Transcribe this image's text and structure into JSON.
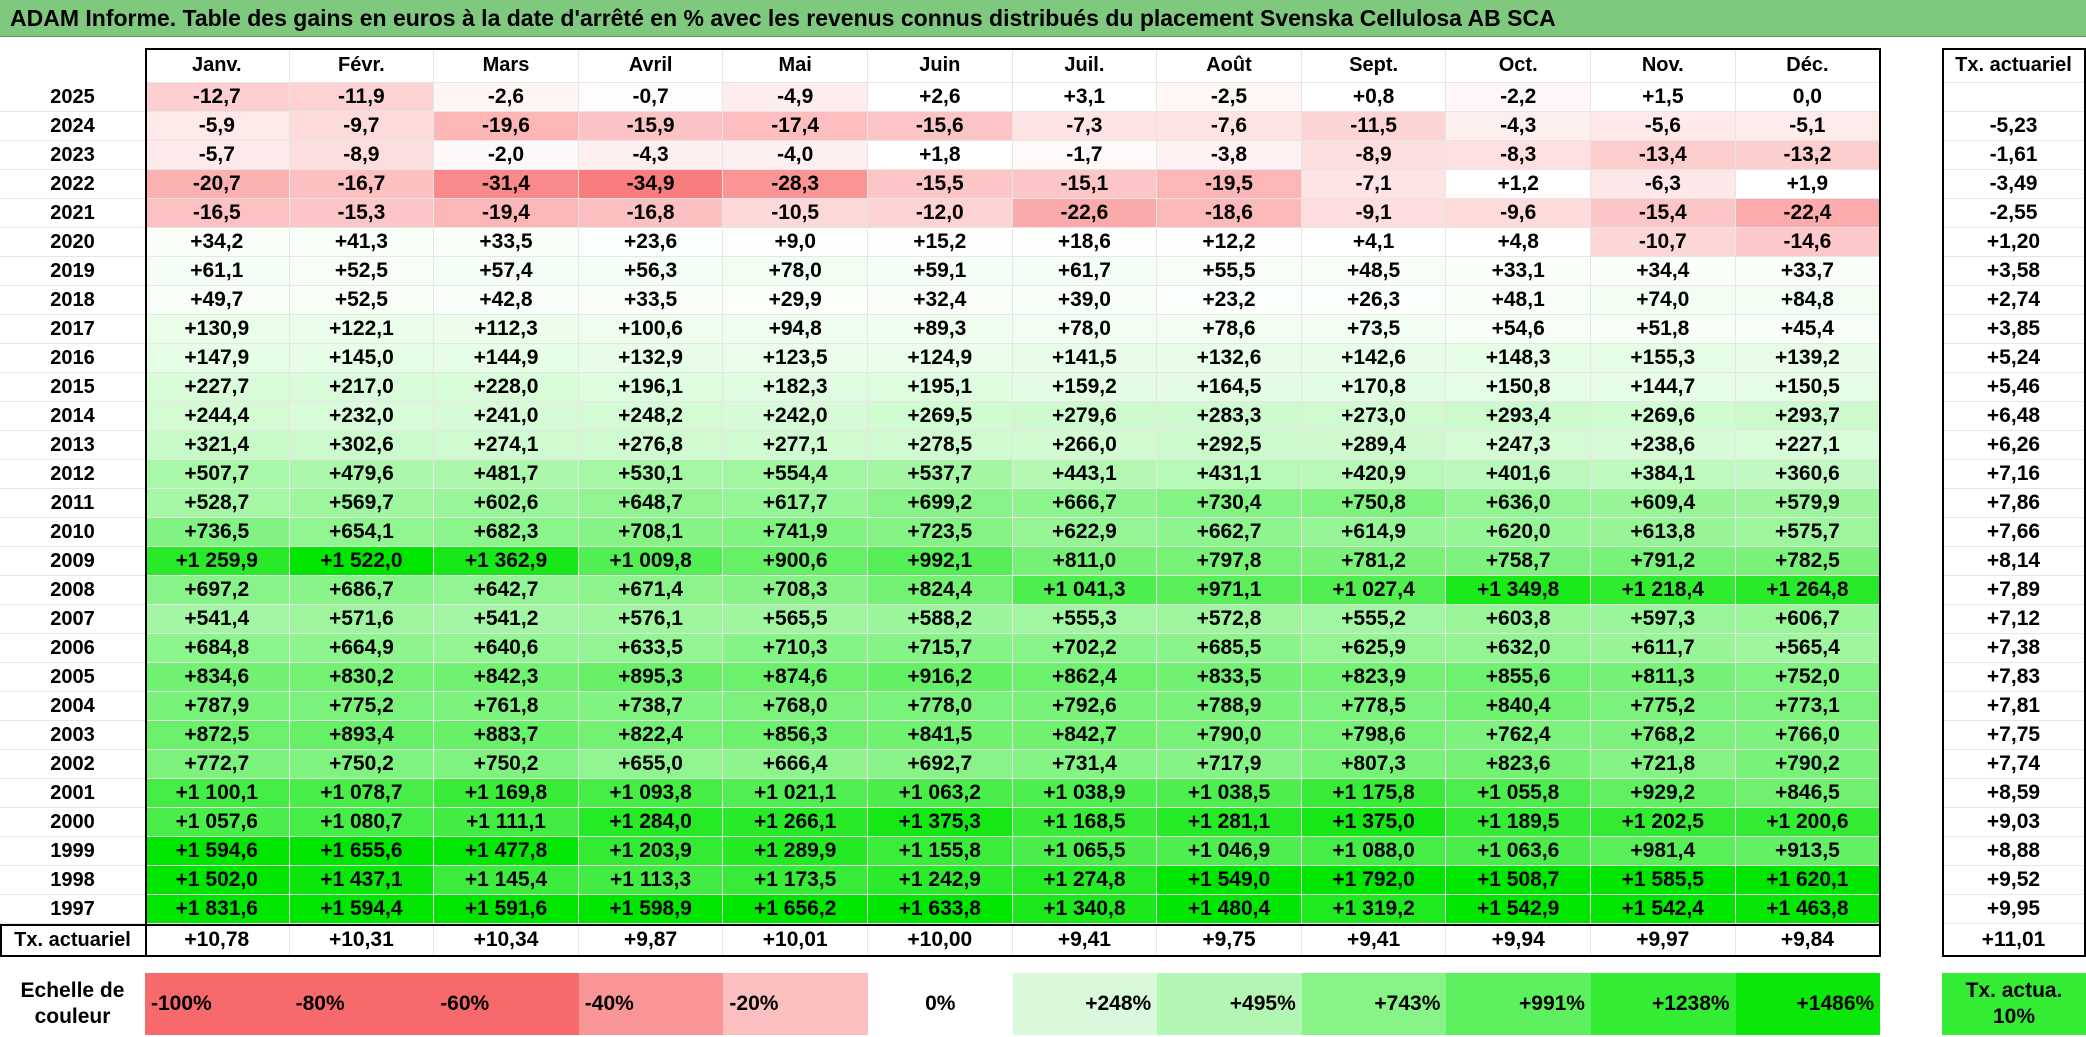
{
  "title": "ADAM Informe. Table des gains en euros à la date d'arrêté en % avec les revenus connus distribués du placement Svenska Cellulosa AB SCA",
  "months": [
    "Janv.",
    "Févr.",
    "Mars",
    "Avril",
    "Mai",
    "Juin",
    "Juil.",
    "Août",
    "Sept.",
    "Oct.",
    "Nov.",
    "Déc."
  ],
  "rate_header": "Tx. actuariel",
  "rows": [
    {
      "year": "2025",
      "cells": [
        "-12,7",
        "-11,9",
        "-2,6",
        "-0,7",
        "-4,9",
        "+2,6",
        "+3,1",
        "-2,5",
        "+0,8",
        "-2,2",
        "+1,5",
        "0,0"
      ],
      "vals": [
        -12.7,
        -11.9,
        -2.6,
        -0.7,
        -4.9,
        2.6,
        3.1,
        -2.5,
        0.8,
        -2.2,
        1.5,
        0.0
      ],
      "rate": ""
    },
    {
      "year": "2024",
      "cells": [
        "-5,9",
        "-9,7",
        "-19,6",
        "-15,9",
        "-17,4",
        "-15,6",
        "-7,3",
        "-7,6",
        "-11,5",
        "-4,3",
        "-5,6",
        "-5,1"
      ],
      "vals": [
        -5.9,
        -9.7,
        -19.6,
        -15.9,
        -17.4,
        -15.6,
        -7.3,
        -7.6,
        -11.5,
        -4.3,
        -5.6,
        -5.1
      ],
      "rate": "-5,23"
    },
    {
      "year": "2023",
      "cells": [
        "-5,7",
        "-8,9",
        "-2,0",
        "-4,3",
        "-4,0",
        "+1,8",
        "-1,7",
        "-3,8",
        "-8,9",
        "-8,3",
        "-13,4",
        "-13,2"
      ],
      "vals": [
        -5.7,
        -8.9,
        -2.0,
        -4.3,
        -4.0,
        1.8,
        -1.7,
        -3.8,
        -8.9,
        -8.3,
        -13.4,
        -13.2
      ],
      "rate": "-1,61"
    },
    {
      "year": "2022",
      "cells": [
        "-20,7",
        "-16,7",
        "-31,4",
        "-34,9",
        "-28,3",
        "-15,5",
        "-15,1",
        "-19,5",
        "-7,1",
        "+1,2",
        "-6,3",
        "+1,9"
      ],
      "vals": [
        -20.7,
        -16.7,
        -31.4,
        -34.9,
        -28.3,
        -15.5,
        -15.1,
        -19.5,
        -7.1,
        1.2,
        -6.3,
        1.9
      ],
      "rate": "-3,49"
    },
    {
      "year": "2021",
      "cells": [
        "-16,5",
        "-15,3",
        "-19,4",
        "-16,8",
        "-10,5",
        "-12,0",
        "-22,6",
        "-18,6",
        "-9,1",
        "-9,6",
        "-15,4",
        "-22,4"
      ],
      "vals": [
        -16.5,
        -15.3,
        -19.4,
        -16.8,
        -10.5,
        -12.0,
        -22.6,
        -18.6,
        -9.1,
        -9.6,
        -15.4,
        -22.4
      ],
      "rate": "-2,55"
    },
    {
      "year": "2020",
      "cells": [
        "+34,2",
        "+41,3",
        "+33,5",
        "+23,6",
        "+9,0",
        "+15,2",
        "+18,6",
        "+12,2",
        "+4,1",
        "+4,8",
        "-10,7",
        "-14,6"
      ],
      "vals": [
        34.2,
        41.3,
        33.5,
        23.6,
        9.0,
        15.2,
        18.6,
        12.2,
        4.1,
        4.8,
        -10.7,
        -14.6
      ],
      "rate": "+1,20"
    },
    {
      "year": "2019",
      "cells": [
        "+61,1",
        "+52,5",
        "+57,4",
        "+56,3",
        "+78,0",
        "+59,1",
        "+61,7",
        "+55,5",
        "+48,5",
        "+33,1",
        "+34,4",
        "+33,7"
      ],
      "vals": [
        61.1,
        52.5,
        57.4,
        56.3,
        78.0,
        59.1,
        61.7,
        55.5,
        48.5,
        33.1,
        34.4,
        33.7
      ],
      "rate": "+3,58"
    },
    {
      "year": "2018",
      "cells": [
        "+49,7",
        "+52,5",
        "+42,8",
        "+33,5",
        "+29,9",
        "+32,4",
        "+39,0",
        "+23,2",
        "+26,3",
        "+48,1",
        "+74,0",
        "+84,8"
      ],
      "vals": [
        49.7,
        52.5,
        42.8,
        33.5,
        29.9,
        32.4,
        39.0,
        23.2,
        26.3,
        48.1,
        74.0,
        84.8
      ],
      "rate": "+2,74"
    },
    {
      "year": "2017",
      "cells": [
        "+130,9",
        "+122,1",
        "+112,3",
        "+100,6",
        "+94,8",
        "+89,3",
        "+78,0",
        "+78,6",
        "+73,5",
        "+54,6",
        "+51,8",
        "+45,4"
      ],
      "vals": [
        130.9,
        122.1,
        112.3,
        100.6,
        94.8,
        89.3,
        78.0,
        78.6,
        73.5,
        54.6,
        51.8,
        45.4
      ],
      "rate": "+3,85"
    },
    {
      "year": "2016",
      "cells": [
        "+147,9",
        "+145,0",
        "+144,9",
        "+132,9",
        "+123,5",
        "+124,9",
        "+141,5",
        "+132,6",
        "+142,6",
        "+148,3",
        "+155,3",
        "+139,2"
      ],
      "vals": [
        147.9,
        145.0,
        144.9,
        132.9,
        123.5,
        124.9,
        141.5,
        132.6,
        142.6,
        148.3,
        155.3,
        139.2
      ],
      "rate": "+5,24"
    },
    {
      "year": "2015",
      "cells": [
        "+227,7",
        "+217,0",
        "+228,0",
        "+196,1",
        "+182,3",
        "+195,1",
        "+159,2",
        "+164,5",
        "+170,8",
        "+150,8",
        "+144,7",
        "+150,5"
      ],
      "vals": [
        227.7,
        217.0,
        228.0,
        196.1,
        182.3,
        195.1,
        159.2,
        164.5,
        170.8,
        150.8,
        144.7,
        150.5
      ],
      "rate": "+5,46"
    },
    {
      "year": "2014",
      "cells": [
        "+244,4",
        "+232,0",
        "+241,0",
        "+248,2",
        "+242,0",
        "+269,5",
        "+279,6",
        "+283,3",
        "+273,0",
        "+293,4",
        "+269,6",
        "+293,7"
      ],
      "vals": [
        244.4,
        232.0,
        241.0,
        248.2,
        242.0,
        269.5,
        279.6,
        283.3,
        273.0,
        293.4,
        269.6,
        293.7
      ],
      "rate": "+6,48"
    },
    {
      "year": "2013",
      "cells": [
        "+321,4",
        "+302,6",
        "+274,1",
        "+276,8",
        "+277,1",
        "+278,5",
        "+266,0",
        "+292,5",
        "+289,4",
        "+247,3",
        "+238,6",
        "+227,1"
      ],
      "vals": [
        321.4,
        302.6,
        274.1,
        276.8,
        277.1,
        278.5,
        266.0,
        292.5,
        289.4,
        247.3,
        238.6,
        227.1
      ],
      "rate": "+6,26"
    },
    {
      "year": "2012",
      "cells": [
        "+507,7",
        "+479,6",
        "+481,7",
        "+530,1",
        "+554,4",
        "+537,7",
        "+443,1",
        "+431,1",
        "+420,9",
        "+401,6",
        "+384,1",
        "+360,6"
      ],
      "vals": [
        507.7,
        479.6,
        481.7,
        530.1,
        554.4,
        537.7,
        443.1,
        431.1,
        420.9,
        401.6,
        384.1,
        360.6
      ],
      "rate": "+7,16"
    },
    {
      "year": "2011",
      "cells": [
        "+528,7",
        "+569,7",
        "+602,6",
        "+648,7",
        "+617,7",
        "+699,2",
        "+666,7",
        "+730,4",
        "+750,8",
        "+636,0",
        "+609,4",
        "+579,9"
      ],
      "vals": [
        528.7,
        569.7,
        602.6,
        648.7,
        617.7,
        699.2,
        666.7,
        730.4,
        750.8,
        636.0,
        609.4,
        579.9
      ],
      "rate": "+7,86"
    },
    {
      "year": "2010",
      "cells": [
        "+736,5",
        "+654,1",
        "+682,3",
        "+708,1",
        "+741,9",
        "+723,5",
        "+622,9",
        "+662,7",
        "+614,9",
        "+620,0",
        "+613,8",
        "+575,7"
      ],
      "vals": [
        736.5,
        654.1,
        682.3,
        708.1,
        741.9,
        723.5,
        622.9,
        662.7,
        614.9,
        620.0,
        613.8,
        575.7
      ],
      "rate": "+7,66"
    },
    {
      "year": "2009",
      "cells": [
        "+1 259,9",
        "+1 522,0",
        "+1 362,9",
        "+1 009,8",
        "+900,6",
        "+992,1",
        "+811,0",
        "+797,8",
        "+781,2",
        "+758,7",
        "+791,2",
        "+782,5"
      ],
      "vals": [
        1259.9,
        1522.0,
        1362.9,
        1009.8,
        900.6,
        992.1,
        811.0,
        797.8,
        781.2,
        758.7,
        791.2,
        782.5
      ],
      "rate": "+8,14"
    },
    {
      "year": "2008",
      "cells": [
        "+697,2",
        "+686,7",
        "+642,7",
        "+671,4",
        "+708,3",
        "+824,4",
        "+1 041,3",
        "+971,1",
        "+1 027,4",
        "+1 349,8",
        "+1 218,4",
        "+1 264,8"
      ],
      "vals": [
        697.2,
        686.7,
        642.7,
        671.4,
        708.3,
        824.4,
        1041.3,
        971.1,
        1027.4,
        1349.8,
        1218.4,
        1264.8
      ],
      "rate": "+7,89"
    },
    {
      "year": "2007",
      "cells": [
        "+541,4",
        "+571,6",
        "+541,2",
        "+576,1",
        "+565,5",
        "+588,2",
        "+555,3",
        "+572,8",
        "+555,2",
        "+603,8",
        "+597,3",
        "+606,7"
      ],
      "vals": [
        541.4,
        571.6,
        541.2,
        576.1,
        565.5,
        588.2,
        555.3,
        572.8,
        555.2,
        603.8,
        597.3,
        606.7
      ],
      "rate": "+7,12"
    },
    {
      "year": "2006",
      "cells": [
        "+684,8",
        "+664,9",
        "+640,6",
        "+633,5",
        "+710,3",
        "+715,7",
        "+702,2",
        "+685,5",
        "+625,9",
        "+632,0",
        "+611,7",
        "+565,4"
      ],
      "vals": [
        684.8,
        664.9,
        640.6,
        633.5,
        710.3,
        715.7,
        702.2,
        685.5,
        625.9,
        632.0,
        611.7,
        565.4
      ],
      "rate": "+7,38"
    },
    {
      "year": "2005",
      "cells": [
        "+834,6",
        "+830,2",
        "+842,3",
        "+895,3",
        "+874,6",
        "+916,2",
        "+862,4",
        "+833,5",
        "+823,9",
        "+855,6",
        "+811,3",
        "+752,0"
      ],
      "vals": [
        834.6,
        830.2,
        842.3,
        895.3,
        874.6,
        916.2,
        862.4,
        833.5,
        823.9,
        855.6,
        811.3,
        752.0
      ],
      "rate": "+7,83"
    },
    {
      "year": "2004",
      "cells": [
        "+787,9",
        "+775,2",
        "+761,8",
        "+738,7",
        "+768,0",
        "+778,0",
        "+792,6",
        "+788,9",
        "+778,5",
        "+840,4",
        "+775,2",
        "+773,1"
      ],
      "vals": [
        787.9,
        775.2,
        761.8,
        738.7,
        768.0,
        778.0,
        792.6,
        788.9,
        778.5,
        840.4,
        775.2,
        773.1
      ],
      "rate": "+7,81"
    },
    {
      "year": "2003",
      "cells": [
        "+872,5",
        "+893,4",
        "+883,7",
        "+822,4",
        "+856,3",
        "+841,5",
        "+842,7",
        "+790,0",
        "+798,6",
        "+762,4",
        "+768,2",
        "+766,0"
      ],
      "vals": [
        872.5,
        893.4,
        883.7,
        822.4,
        856.3,
        841.5,
        842.7,
        790.0,
        798.6,
        762.4,
        768.2,
        766.0
      ],
      "rate": "+7,75"
    },
    {
      "year": "2002",
      "cells": [
        "+772,7",
        "+750,2",
        "+750,2",
        "+655,0",
        "+666,4",
        "+692,7",
        "+731,4",
        "+717,9",
        "+807,3",
        "+823,6",
        "+721,8",
        "+790,2"
      ],
      "vals": [
        772.7,
        750.2,
        750.2,
        655.0,
        666.4,
        692.7,
        731.4,
        717.9,
        807.3,
        823.6,
        721.8,
        790.2
      ],
      "rate": "+7,74"
    },
    {
      "year": "2001",
      "cells": [
        "+1 100,1",
        "+1 078,7",
        "+1 169,8",
        "+1 093,8",
        "+1 021,1",
        "+1 063,2",
        "+1 038,9",
        "+1 038,5",
        "+1 175,8",
        "+1 055,8",
        "+929,2",
        "+846,5"
      ],
      "vals": [
        1100.1,
        1078.7,
        1169.8,
        1093.8,
        1021.1,
        1063.2,
        1038.9,
        1038.5,
        1175.8,
        1055.8,
        929.2,
        846.5
      ],
      "rate": "+8,59"
    },
    {
      "year": "2000",
      "cells": [
        "+1 057,6",
        "+1 080,7",
        "+1 111,1",
        "+1 284,0",
        "+1 266,1",
        "+1 375,3",
        "+1 168,5",
        "+1 281,1",
        "+1 375,0",
        "+1 189,5",
        "+1 202,5",
        "+1 200,6"
      ],
      "vals": [
        1057.6,
        1080.7,
        1111.1,
        1284.0,
        1266.1,
        1375.3,
        1168.5,
        1281.1,
        1375.0,
        1189.5,
        1202.5,
        1200.6
      ],
      "rate": "+9,03"
    },
    {
      "year": "1999",
      "cells": [
        "+1 594,6",
        "+1 655,6",
        "+1 477,8",
        "+1 203,9",
        "+1 289,9",
        "+1 155,8",
        "+1 065,5",
        "+1 046,9",
        "+1 088,0",
        "+1 063,6",
        "+981,4",
        "+913,5"
      ],
      "vals": [
        1594.6,
        1655.6,
        1477.8,
        1203.9,
        1289.9,
        1155.8,
        1065.5,
        1046.9,
        1088.0,
        1063.6,
        981.4,
        913.5
      ],
      "rate": "+8,88"
    },
    {
      "year": "1998",
      "cells": [
        "+1 502,0",
        "+1 437,1",
        "+1 145,4",
        "+1 113,3",
        "+1 173,5",
        "+1 242,9",
        "+1 274,8",
        "+1 549,0",
        "+1 792,0",
        "+1 508,7",
        "+1 585,5",
        "+1 620,1"
      ],
      "vals": [
        1502.0,
        1437.1,
        1145.4,
        1113.3,
        1173.5,
        1242.9,
        1274.8,
        1549.0,
        1792.0,
        1508.7,
        1585.5,
        1620.1
      ],
      "rate": "+9,52"
    },
    {
      "year": "1997",
      "cells": [
        "+1 831,6",
        "+1 594,4",
        "+1 591,6",
        "+1 598,9",
        "+1 656,2",
        "+1 633,8",
        "+1 340,8",
        "+1 480,4",
        "+1 319,2",
        "+1 542,9",
        "+1 542,4",
        "+1 463,8"
      ],
      "vals": [
        1831.6,
        1594.4,
        1591.6,
        1598.9,
        1656.2,
        1633.8,
        1340.8,
        1480.4,
        1319.2,
        1542.9,
        1542.4,
        1463.8
      ],
      "rate": "+9,95"
    }
  ],
  "footer": {
    "label": "Tx. actuariel",
    "values": [
      "+10,78",
      "+10,31",
      "+10,34",
      "+9,87",
      "+10,01",
      "+10,00",
      "+9,41",
      "+9,75",
      "+9,41",
      "+9,94",
      "+9,97",
      "+9,84"
    ],
    "total": "+11,01"
  },
  "legend": {
    "label": "Echelle de couleur",
    "items": [
      {
        "text": "-100%",
        "color": "#f8696b"
      },
      {
        "text": "-80%",
        "color": "#f8696b"
      },
      {
        "text": "-60%",
        "color": "#f8696b"
      },
      {
        "text": "-40%",
        "color": "#fa9597"
      },
      {
        "text": "-20%",
        "color": "#fcbfc0"
      },
      {
        "text": "0%",
        "color": "#ffffff"
      },
      {
        "text": "+248%",
        "color": "#daf9da"
      },
      {
        "text": "+495%",
        "color": "#b3f6b3"
      },
      {
        "text": "+743%",
        "color": "#88f488"
      },
      {
        "text": "+991%",
        "color": "#5ef05e"
      },
      {
        "text": "+1238%",
        "color": "#33ec33"
      },
      {
        "text": "+1486%",
        "color": "#0ae80a"
      }
    ],
    "rate_box": "Tx. actua. 10%",
    "rate_box_color": "#33ec33"
  },
  "colors": {
    "title_bg": "#7fc97f",
    "negative_max": "#f8696b",
    "positive_max": "#00e600",
    "zero": "#ffffff"
  }
}
